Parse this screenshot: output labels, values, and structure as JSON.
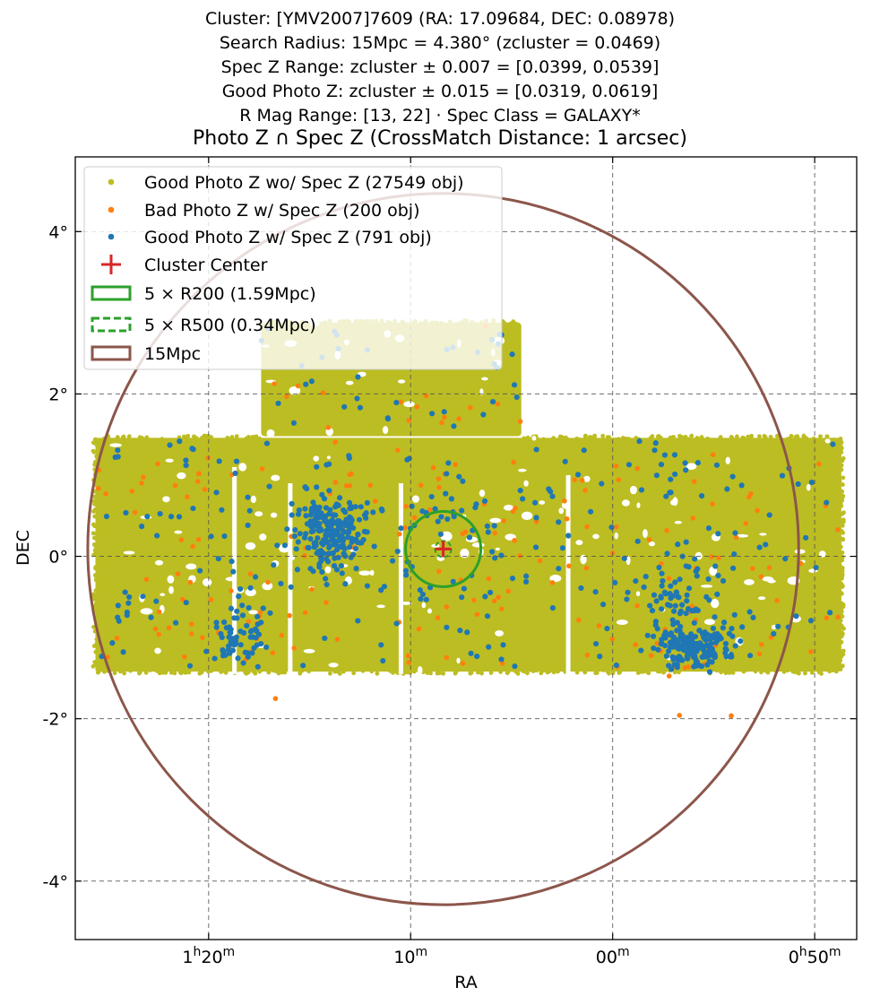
{
  "header": {
    "lines": [
      "Cluster: [YMV2007]7609 (RA: 17.09684, DEC: 0.08978)",
      "Search Radius: 15Mpc = 4.380° (zcluster = 0.0469)",
      "Spec Z Range: zcluster ± 0.007 = [0.0399, 0.0539]",
      "Good Photo Z: zcluster ± 0.015 = [0.0319, 0.0619]",
      "R Mag Range: [13, 22] · Spec Class = GALAXY*"
    ]
  },
  "chart_data": {
    "type": "scatter",
    "title": "Photo Z ∩ Spec Z (CrossMatch Distance: 1 arcsec)",
    "xlabel": "RA",
    "ylabel": "DEC",
    "x_unit": "deg",
    "xlim": [
      21.65,
      11.98
    ],
    "ylim": [
      -4.72,
      4.92
    ],
    "x_inverted": true,
    "x_ticks": [
      {
        "value": 20.0,
        "label_main": "1",
        "label_sup1": "h",
        "label_mid": "20",
        "label_sup2": "m"
      },
      {
        "value": 17.5,
        "label_main": "10",
        "label_sup1": "m"
      },
      {
        "value": 15.0,
        "label_main": "00",
        "label_sup1": "m"
      },
      {
        "value": 12.5,
        "label_main": "0",
        "label_sup1": "h",
        "label_mid": "50",
        "label_sup2": "m"
      }
    ],
    "y_ticks": [
      {
        "value": 4,
        "label": "4°"
      },
      {
        "value": 2,
        "label": "2°"
      },
      {
        "value": 0,
        "label": "0°"
      },
      {
        "value": -2,
        "label": "-2°"
      },
      {
        "value": -4,
        "label": "-4°"
      }
    ],
    "grid": true,
    "grid_style": "dashed",
    "legend_placement": "upper-left",
    "series": [
      {
        "name": "Good Photo Z wo/ Spec Z (27549 obj)",
        "color": "#bcbd22",
        "kind": "footprint",
        "count": 27549,
        "regions": [
          {
            "ra": [
              16.13,
              19.35
            ],
            "dec": [
              1.48,
              2.88
            ]
          },
          {
            "ra": [
              12.17,
              21.4
            ],
            "dec": [
              -1.42,
              1.46
            ]
          }
        ]
      },
      {
        "name": "Bad Photo Z w/ Spec Z (200 obj)",
        "color": "#ff7f0e",
        "kind": "points",
        "count": 200
      },
      {
        "name": "Good Photo Z w/ Spec Z (791 obj)",
        "color": "#1f77b4",
        "kind": "points",
        "count": 791,
        "clusters": [
          {
            "ra": 18.48,
            "dec": 0.28
          },
          {
            "ra": 13.99,
            "dec": -1.12
          },
          {
            "ra": 14.22,
            "dec": -0.55
          },
          {
            "ra": 19.64,
            "dec": -0.98
          }
        ]
      },
      {
        "name": "Cluster Center",
        "color": "#d62728",
        "kind": "marker",
        "ra": 17.09684,
        "dec": 0.08978
      },
      {
        "name": "5 × R200 (1.59Mpc)",
        "color": "#2ca02c",
        "kind": "circle",
        "ra": 17.09684,
        "dec": 0.08978,
        "radius_deg": 0.464
      },
      {
        "name": "5 × R500 (0.34Mpc)",
        "color": "#2ca02c",
        "kind": "circle-dashed",
        "ra": 17.09684,
        "dec": 0.08978,
        "radius_deg": 0.1
      },
      {
        "name": "15Mpc",
        "color": "#8c564b",
        "kind": "circle",
        "ra": 17.09684,
        "dec": 0.08978,
        "radius_deg": 4.38
      }
    ]
  }
}
